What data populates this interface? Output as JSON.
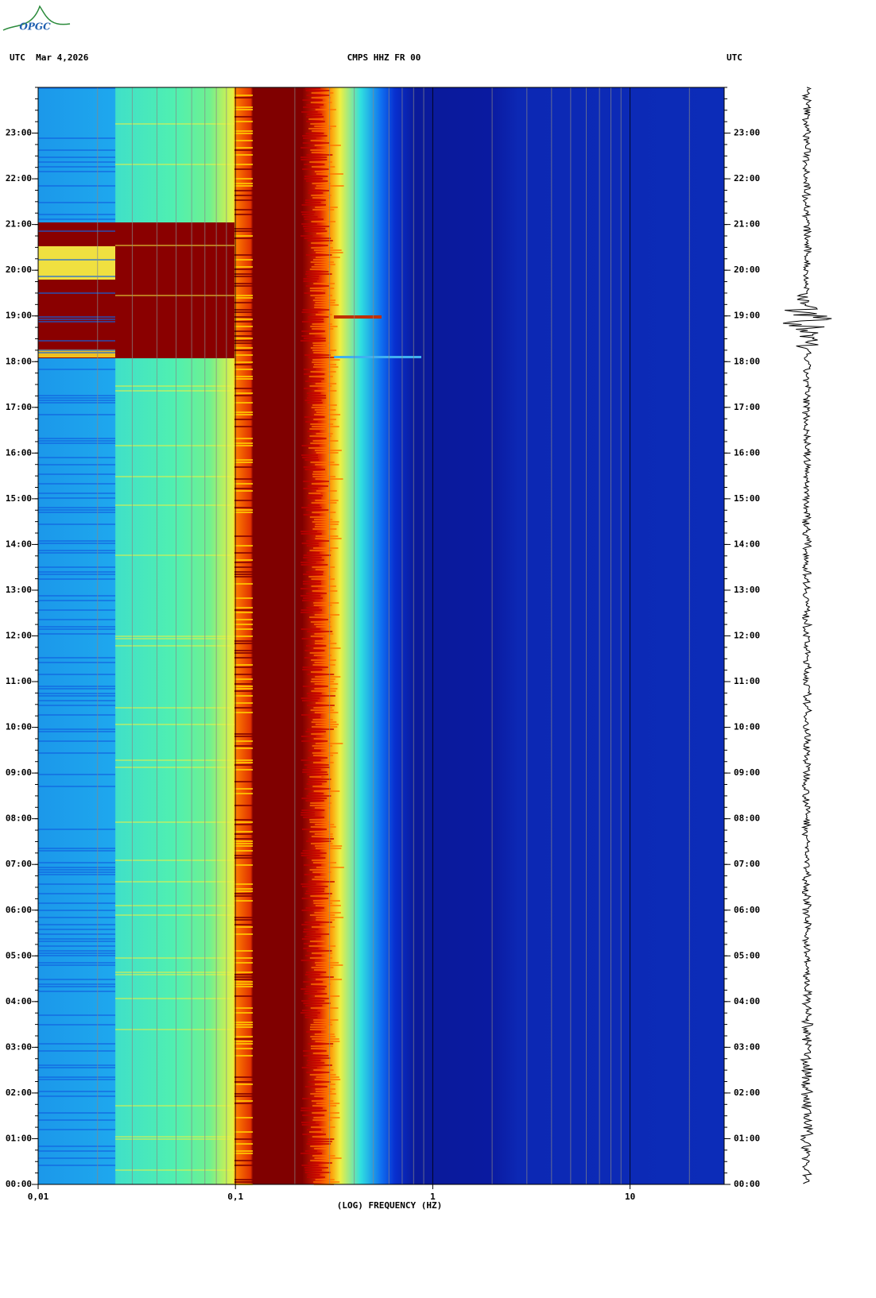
{
  "logo": "OPGC",
  "header": {
    "left": "UTC  Mar 4,2026",
    "center": "CMPS HHZ FR 00",
    "right": "UTC"
  },
  "chart_data": {
    "type": "spectrogram",
    "xlabel": "(LOG) FREQUENCY (HZ)",
    "xscale": "log",
    "xlim": [
      0.01,
      30
    ],
    "xticks": [
      {
        "value": 0.01,
        "label": "0,01"
      },
      {
        "value": 0.1,
        "label": "0,1"
      },
      1,
      10
    ],
    "ylim": [
      0,
      24
    ],
    "yticks": [
      {
        "value": 0,
        "label": "00:00"
      },
      {
        "value": 1,
        "label": "01:00"
      },
      {
        "value": 2,
        "label": "02:00"
      },
      {
        "value": 3,
        "label": "03:00"
      },
      {
        "value": 4,
        "label": "04:00"
      },
      {
        "value": 5,
        "label": "05:00"
      },
      {
        "value": 6,
        "label": "06:00"
      },
      {
        "value": 7,
        "label": "07:00"
      },
      {
        "value": 8,
        "label": "08:00"
      },
      {
        "value": 9,
        "label": "09:00"
      },
      {
        "value": 10,
        "label": "10:00"
      },
      {
        "value": 11,
        "label": "11:00"
      },
      {
        "value": 12,
        "label": "12:00"
      },
      {
        "value": 13,
        "label": "13:00"
      },
      {
        "value": 14,
        "label": "14:00"
      },
      {
        "value": 15,
        "label": "15:00"
      },
      {
        "value": 16,
        "label": "16:00"
      },
      {
        "value": 17,
        "label": "17:00"
      },
      {
        "value": 18,
        "label": "18:00"
      },
      {
        "value": 19,
        "label": "19:00"
      },
      {
        "value": 20,
        "label": "20:00"
      },
      {
        "value": 21,
        "label": "21:00"
      },
      {
        "value": 22,
        "label": "22:00"
      },
      {
        "value": 23,
        "label": "23:00"
      }
    ],
    "grid": true
  }
}
